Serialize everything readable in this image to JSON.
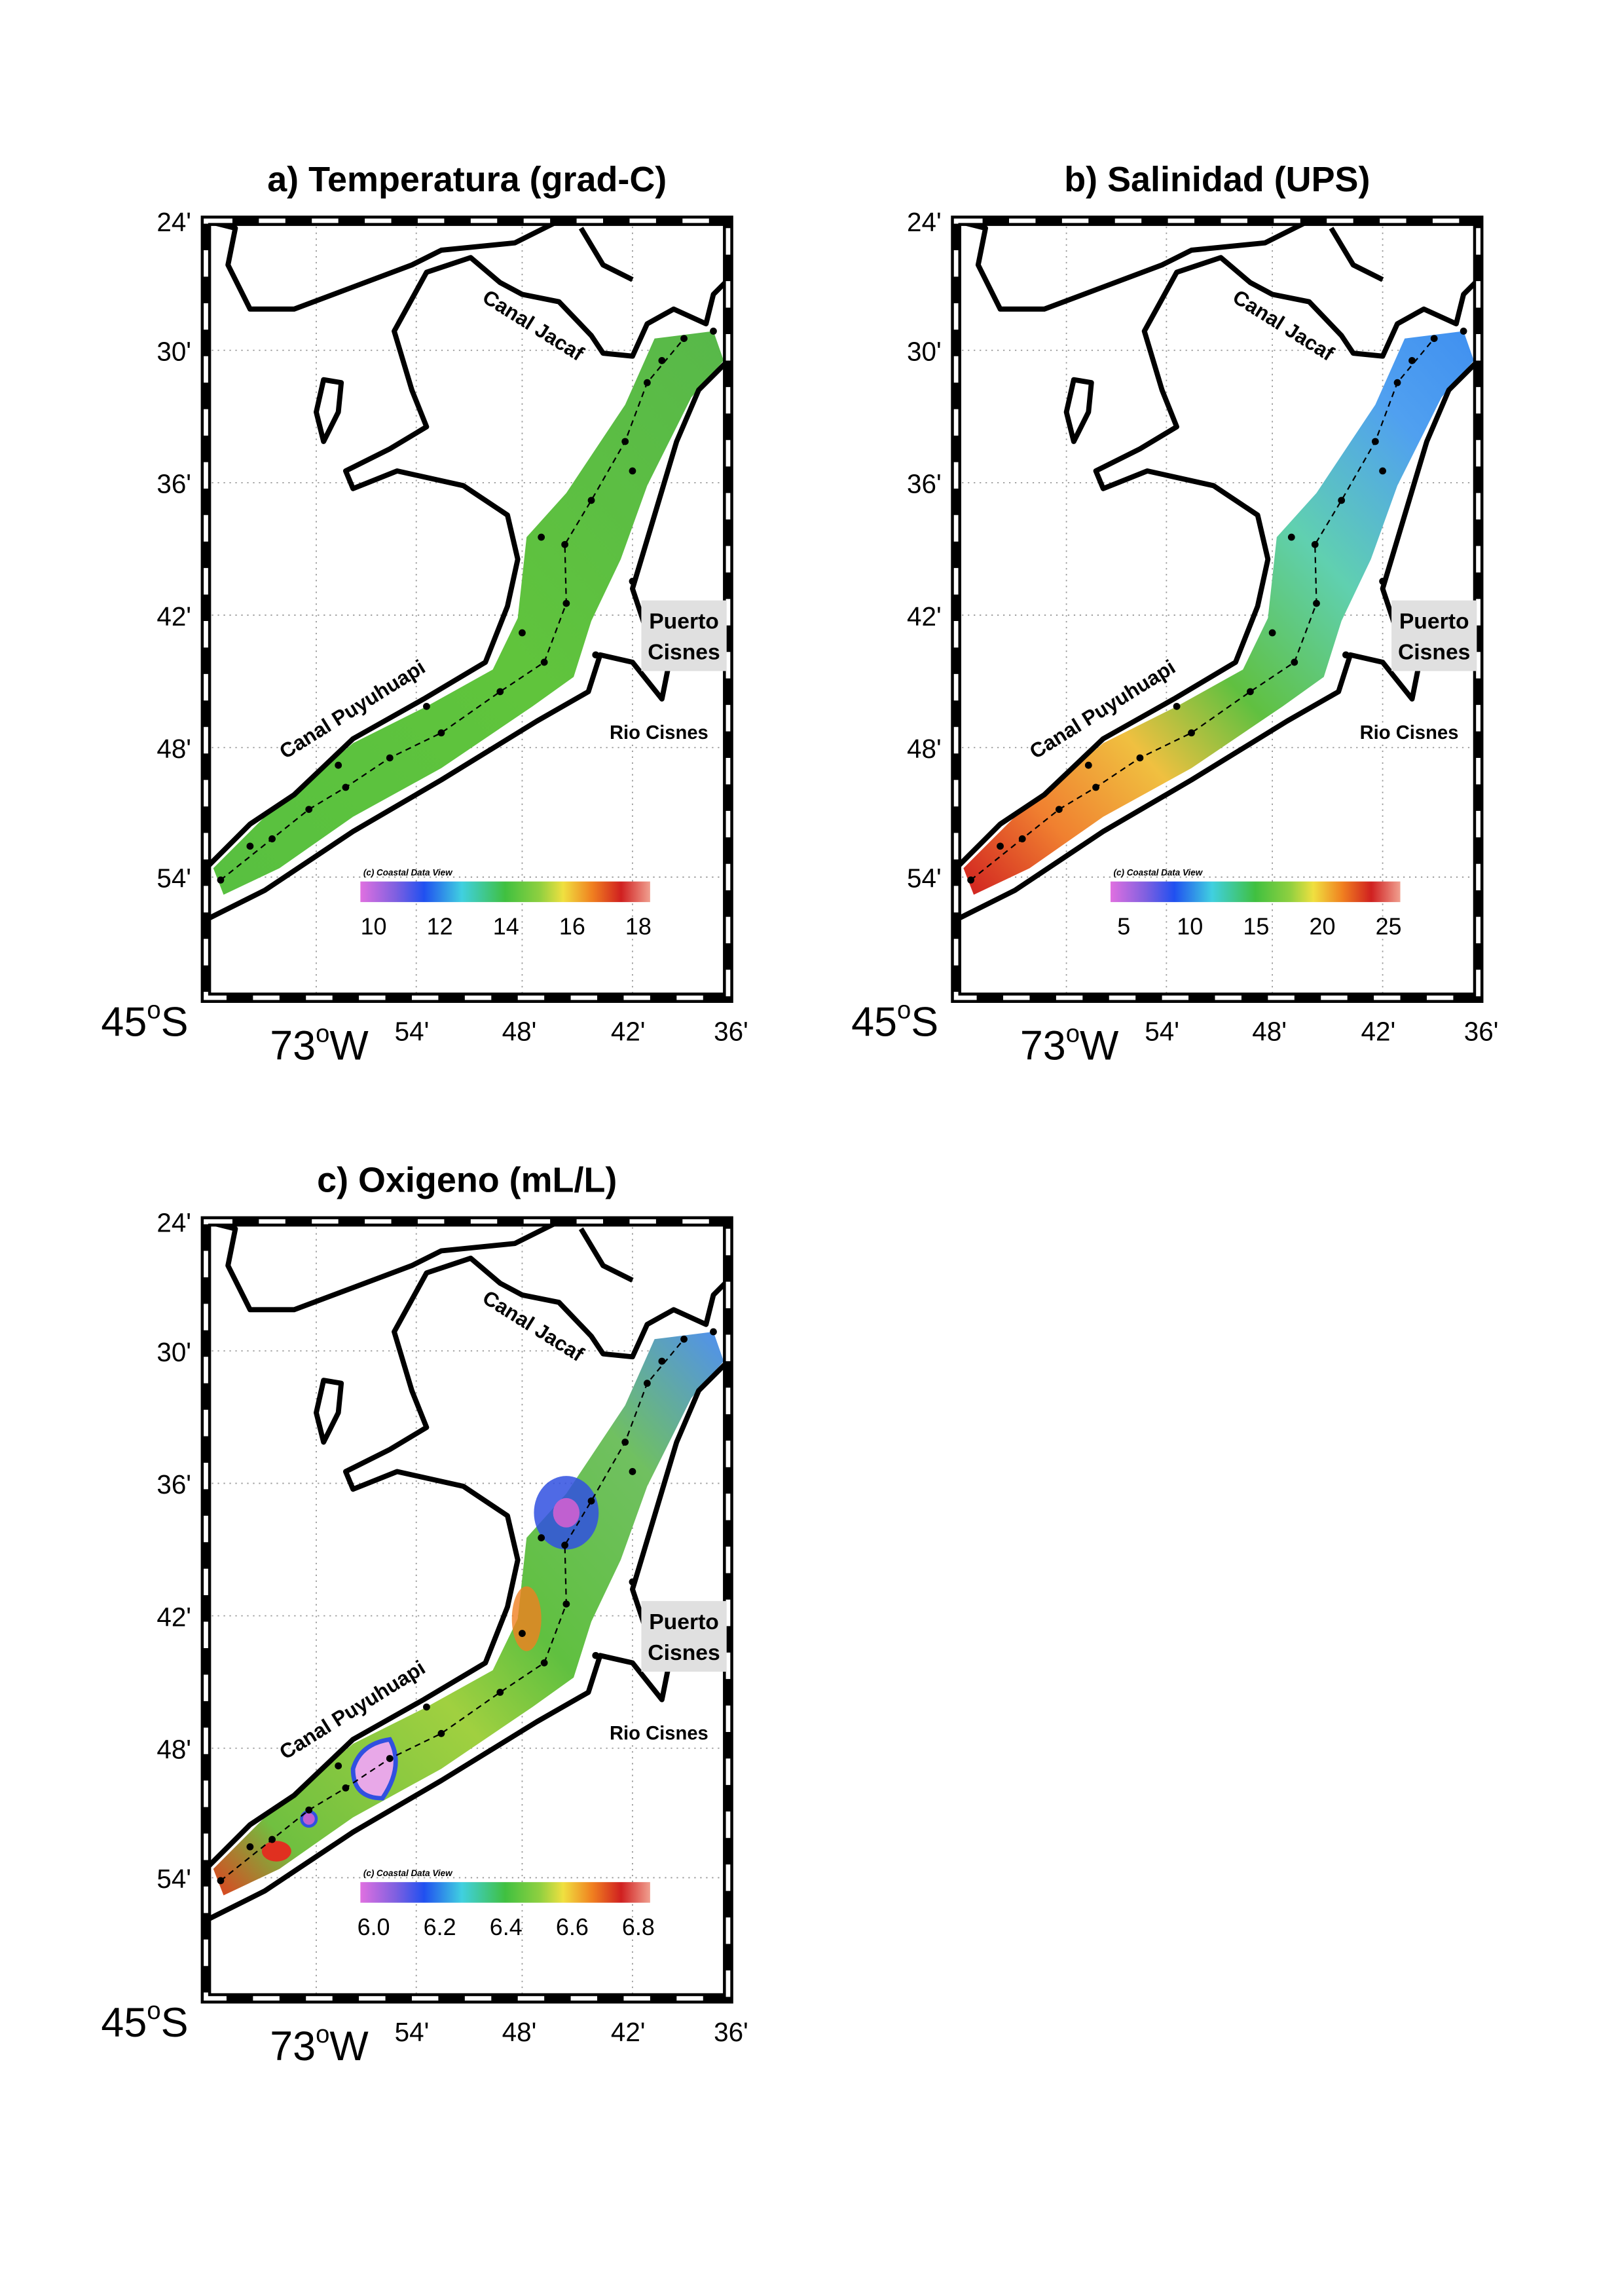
{
  "panels": [
    {
      "title": "a) Temperatura (grad-C)",
      "lat_labels": [
        "24'",
        "30'",
        "36'",
        "42'",
        "48'",
        "54'"
      ],
      "corner_lat": [
        "45",
        "o",
        "S"
      ],
      "corner_lon": [
        "73",
        "o",
        "W"
      ],
      "lon_labels": [
        "54'",
        "48'",
        "42'",
        "36'"
      ],
      "places": {
        "jacaf": "Canal Jacaf",
        "puyuhuapi": "Canal Puyuhuapi",
        "puerto": [
          "Puerto",
          "Cisnes"
        ],
        "rio": "Rio Cisnes"
      },
      "credit": "(c) Coastal Data View",
      "colorbar_labels": [
        "10",
        "12",
        "14",
        "16",
        "18"
      ]
    },
    {
      "title": "b) Salinidad (UPS)",
      "lat_labels": [
        "24'",
        "30'",
        "36'",
        "42'",
        "48'",
        "54'"
      ],
      "corner_lat": [
        "45",
        "o",
        "S"
      ],
      "corner_lon": [
        "73",
        "o",
        "W"
      ],
      "lon_labels": [
        "54'",
        "48'",
        "42'",
        "36'"
      ],
      "places": {
        "jacaf": "Canal Jacaf",
        "puyuhuapi": "Canal Puyuhuapi",
        "puerto": [
          "Puerto",
          "Cisnes"
        ],
        "rio": "Rio Cisnes"
      },
      "credit": "(c) Coastal Data View",
      "colorbar_labels": [
        "5",
        "10",
        "15",
        "20",
        "25"
      ]
    },
    {
      "title": "c) Oxigeno (mL/L)",
      "lat_labels": [
        "24'",
        "30'",
        "36'",
        "42'",
        "48'",
        "54'"
      ],
      "corner_lat": [
        "45",
        "o",
        "S"
      ],
      "corner_lon": [
        "73",
        "o",
        "W"
      ],
      "lon_labels": [
        "54'",
        "48'",
        "42'",
        "36'"
      ],
      "places": {
        "jacaf": "Canal Jacaf",
        "puyuhuapi": "Canal Puyuhuapi",
        "puerto": [
          "Puerto",
          "Cisnes"
        ],
        "rio": "Rio Cisnes"
      },
      "credit": "(c) Coastal Data View",
      "colorbar_labels": [
        "6.0",
        "6.2",
        "6.4",
        "6.6",
        "6.8"
      ]
    }
  ]
}
